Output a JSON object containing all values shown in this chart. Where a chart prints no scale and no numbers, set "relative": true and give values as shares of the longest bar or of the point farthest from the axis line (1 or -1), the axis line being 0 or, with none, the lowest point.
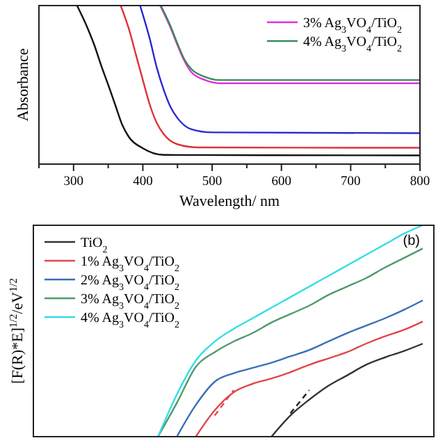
{
  "chart_data": [
    {
      "type": "line",
      "xlabel": "Wavelength/ nm",
      "ylabel": "Absorbance",
      "relative": true,
      "xlim": [
        250,
        800
      ],
      "xticks": [
        {
          "value": 250,
          "label": null
        },
        300,
        {
          "value": 350,
          "label": null
        },
        400,
        {
          "value": 450,
          "label": null
        },
        500,
        {
          "value": 550,
          "label": null
        },
        600,
        {
          "value": 650,
          "label": null
        },
        700,
        {
          "value": 750,
          "label": null
        },
        800
      ],
      "tick_labels": "x",
      "legend": "top right",
      "grid": false,
      "series": [
        {
          "color": "#111111",
          "x": [
            305,
            320,
            330,
            340,
            350,
            360,
            370,
            380,
            400,
            430,
            800
          ],
          "values": [
            1,
            0.86,
            0.75,
            0.62,
            0.5,
            0.375,
            0.25,
            0.17,
            0.1,
            0.058,
            0.055
          ]
        },
        {
          "color": "#e0303a",
          "x": [
            368,
            380,
            390,
            400,
            410,
            420,
            430,
            450,
            480,
            800
          ],
          "values": [
            1,
            0.85,
            0.69,
            0.53,
            0.375,
            0.26,
            0.19,
            0.125,
            0.105,
            0.103
          ]
        },
        {
          "color": "#2a2ad0",
          "x": [
            396,
            410,
            420,
            430,
            440,
            450,
            470,
            500,
            800
          ],
          "values": [
            1,
            0.79,
            0.61,
            0.47,
            0.36,
            0.29,
            0.22,
            0.2,
            0.195
          ]
        },
        {
          "name": "3% Ag$_{3}$VO$_{4}$/TiO$_{2}$",
          "color": "#e030e0",
          "x": [
            425,
            440,
            450,
            460,
            470,
            490,
            510,
            800
          ],
          "values": [
            1,
            0.86,
            0.75,
            0.65,
            0.58,
            0.53,
            0.51,
            0.51
          ]
        },
        {
          "name": "4% Ag$_{3}$VO$_{4}$/TiO$_{2}$",
          "color": "#3a8a5a",
          "x": [
            426,
            440,
            450,
            460,
            470,
            490,
            510,
            800
          ],
          "values": [
            1,
            0.87,
            0.76,
            0.66,
            0.6,
            0.55,
            0.53,
            0.53
          ]
        }
      ]
    },
    {
      "type": "line",
      "ylabel": "[F(R)*E]$^{1/2}$/eV$^{1/2}$",
      "relative": true,
      "categories": [
        null,
        null,
        null,
        null,
        null,
        null,
        null,
        null,
        null,
        null,
        null,
        null,
        null,
        null,
        null,
        null,
        null,
        null,
        null,
        null,
        null
      ],
      "tick_labels": false,
      "legend": "top left",
      "grid": false,
      "annotations": [
        "(b)"
      ],
      "series": [
        {
          "name": "TiO$_{2}$",
          "color": "#333333",
          "values": [
            null,
            null,
            null,
            null,
            null,
            null,
            null,
            null,
            null,
            null,
            null,
            null,
            0,
            0.1,
            0.175,
            0.24,
            0.29,
            0.34,
            0.375,
            0.405,
            0.44
          ]
        },
        {
          "name": "1% Ag$_{3}$VO$_{4}$/TiO$_{2}$",
          "color": "#e0474c",
          "values": [
            null,
            null,
            null,
            null,
            null,
            null,
            null,
            null,
            0,
            0.125,
            0.21,
            0.25,
            0.275,
            0.305,
            0.34,
            0.37,
            0.4,
            0.44,
            0.475,
            0.505,
            0.545
          ]
        },
        {
          "name": "2% Ag$_{3}$VO$_{4}$/TiO$_{2}$",
          "color": "#3a6fb5",
          "values": [
            null,
            null,
            null,
            null,
            null,
            null,
            null,
            0,
            0.15,
            0.26,
            0.3,
            0.325,
            0.35,
            0.38,
            0.41,
            0.45,
            0.49,
            0.525,
            0.56,
            0.6,
            0.645
          ]
        },
        {
          "name": "3% Ag$_{3}$VO$_{4}$/TiO$_{2}$",
          "color": "#4e9a6a",
          "values": [
            null,
            null,
            null,
            null,
            null,
            null,
            0,
            0.16,
            0.33,
            0.4,
            0.45,
            0.49,
            0.54,
            0.58,
            0.62,
            0.67,
            0.71,
            0.75,
            0.8,
            0.845,
            0.89
          ]
        },
        {
          "name": "4% Ag$_{3}$VO$_{4}$/TiO$_{2}$",
          "color": "#33dde6",
          "values": [
            null,
            null,
            null,
            null,
            null,
            null,
            0,
            0.2,
            0.36,
            0.45,
            0.51,
            0.56,
            0.61,
            0.66,
            0.71,
            0.76,
            0.81,
            0.86,
            0.91,
            0.96,
            1
          ]
        },
        {
          "type": "line",
          "line_style": "dashed",
          "color": "#e0474c",
          "values": [
            null,
            null,
            null,
            null,
            null,
            null,
            null,
            null,
            null,
            0.1,
            0.22,
            null,
            null,
            null,
            null,
            null,
            null,
            null,
            null,
            null,
            null
          ]
        },
        {
          "type": "line",
          "line_style": "dashed",
          "color": "#222222",
          "values": [
            null,
            null,
            null,
            null,
            null,
            null,
            null,
            null,
            null,
            null,
            null,
            null,
            null,
            0.11,
            0.22,
            null,
            null,
            null,
            null,
            null,
            null
          ]
        }
      ]
    }
  ]
}
